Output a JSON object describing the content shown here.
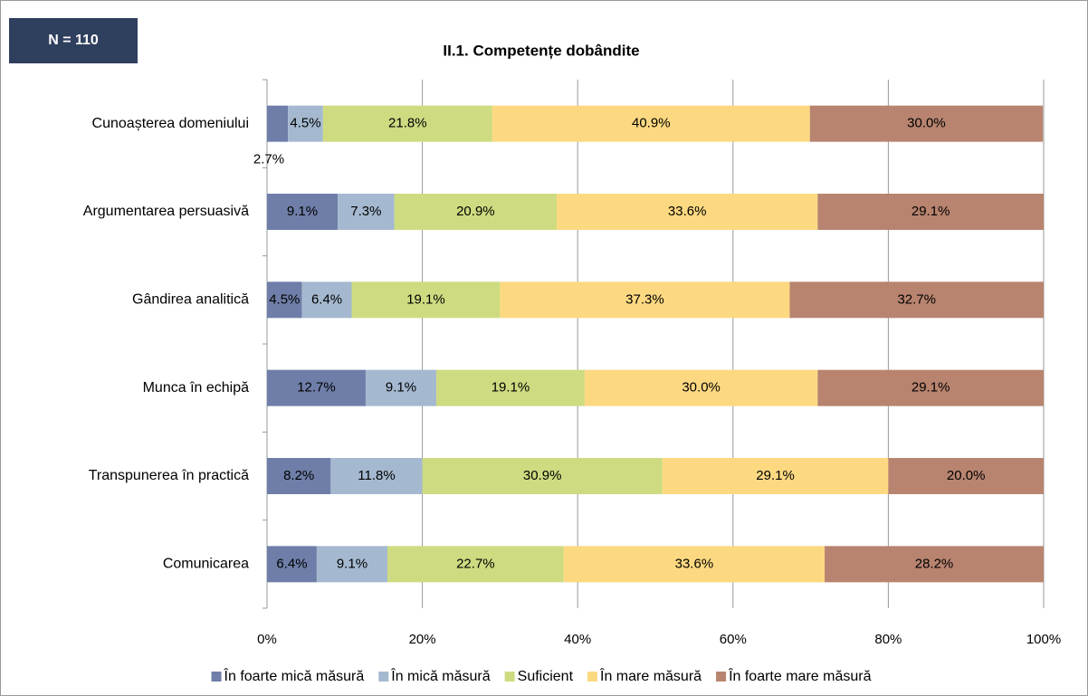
{
  "badge": "N = 110",
  "chart_data": {
    "type": "stacked-barh",
    "title": "II.1. Competențe dobândite",
    "categories": [
      "Cunoașterea domeniului",
      "Argumentarea persuasivă",
      "Gândirea analitică",
      "Munca în echipă",
      "Transpunerea în practică",
      "Comunicarea"
    ],
    "series": [
      {
        "name": "În foarte mică măsură",
        "color": "#6e7ea8",
        "values": [
          2.7,
          9.1,
          4.5,
          12.7,
          8.2,
          6.4
        ],
        "value_labels": [
          "2.7%",
          "9.1%",
          "4.5%",
          "12.7%",
          "8.2%",
          "6.4%"
        ]
      },
      {
        "name": "În mică măsură",
        "color": "#a4b9d0",
        "values": [
          4.5,
          7.3,
          6.4,
          9.1,
          11.8,
          9.1
        ],
        "value_labels": [
          "4.5%",
          "7.3%",
          "6.4%",
          "9.1%",
          "11.8%",
          "9.1%"
        ]
      },
      {
        "name": "Suficient",
        "color": "#cedb80",
        "values": [
          21.8,
          20.9,
          19.1,
          19.1,
          30.9,
          22.7
        ],
        "value_labels": [
          "21.8%",
          "20.9%",
          "19.1%",
          "19.1%",
          "30.9%",
          "22.7%"
        ]
      },
      {
        "name": "În mare măsură",
        "color": "#fcd981",
        "values": [
          40.9,
          33.6,
          37.3,
          30.0,
          29.1,
          33.6
        ],
        "value_labels": [
          "40.9%",
          "33.6%",
          "37.3%",
          "30.0%",
          "29.1%",
          "33.6%"
        ]
      },
      {
        "name": "În foarte mare măsură",
        "color": "#b8846f",
        "values": [
          30.0,
          29.1,
          32.7,
          29.1,
          20.0,
          28.2
        ],
        "value_labels": [
          "30.0%",
          "29.1%",
          "32.7%",
          "29.1%",
          "20.0%",
          "28.2%"
        ]
      }
    ],
    "xlim": [
      0,
      100
    ],
    "xticks": [
      {
        "value": 0,
        "label": "0%"
      },
      {
        "value": 20,
        "label": "20%"
      },
      {
        "value": 40,
        "label": "40%"
      },
      {
        "value": 60,
        "label": "60%"
      },
      {
        "value": 80,
        "label": "80%"
      },
      {
        "value": 100,
        "label": "100%"
      }
    ],
    "grid": true,
    "legend": "bottom"
  }
}
